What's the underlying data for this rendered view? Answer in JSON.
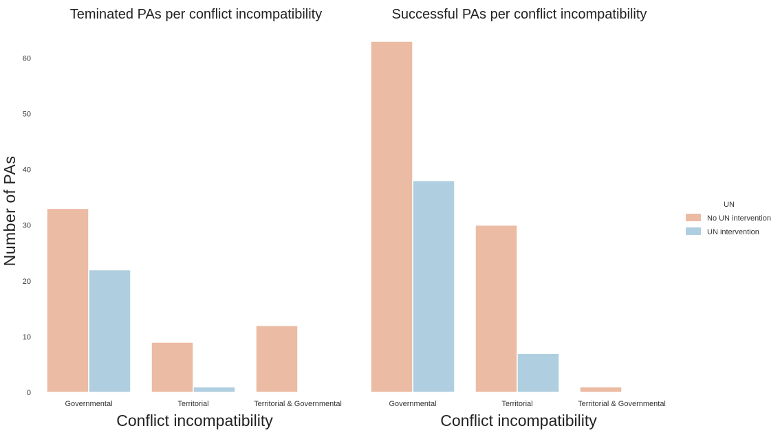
{
  "ylabel": "Number of PAs",
  "legend": {
    "title": "UN",
    "position": "right"
  },
  "colors": {
    "No UN intervention": "#ecbba3",
    "UN intervention": "#afcfe0"
  },
  "chart_data": [
    {
      "type": "bar",
      "title": "Teminated PAs per conflict incompatibility",
      "xlabel": "Conflict incompatibility",
      "categories": [
        "Governmental",
        "Territorial",
        "Territorial & Governmental"
      ],
      "series": [
        {
          "name": "No UN intervention",
          "values": [
            33,
            9,
            12
          ]
        },
        {
          "name": "UN intervention",
          "values": [
            22,
            1,
            0
          ]
        }
      ],
      "ylim": [
        0,
        65
      ],
      "yticks": [
        0,
        10,
        20,
        30,
        40,
        50,
        60
      ],
      "grid": false
    },
    {
      "type": "bar",
      "title": "Successful PAs per conflict incompatibility",
      "xlabel": "Conflict incompatibility",
      "categories": [
        "Governmental",
        "Territorial",
        "Territorial & Governmental"
      ],
      "series": [
        {
          "name": "No UN intervention",
          "values": [
            63,
            30,
            1
          ]
        },
        {
          "name": "UN intervention",
          "values": [
            38,
            7,
            0
          ]
        }
      ],
      "ylim": [
        0,
        65
      ],
      "grid": false
    }
  ]
}
